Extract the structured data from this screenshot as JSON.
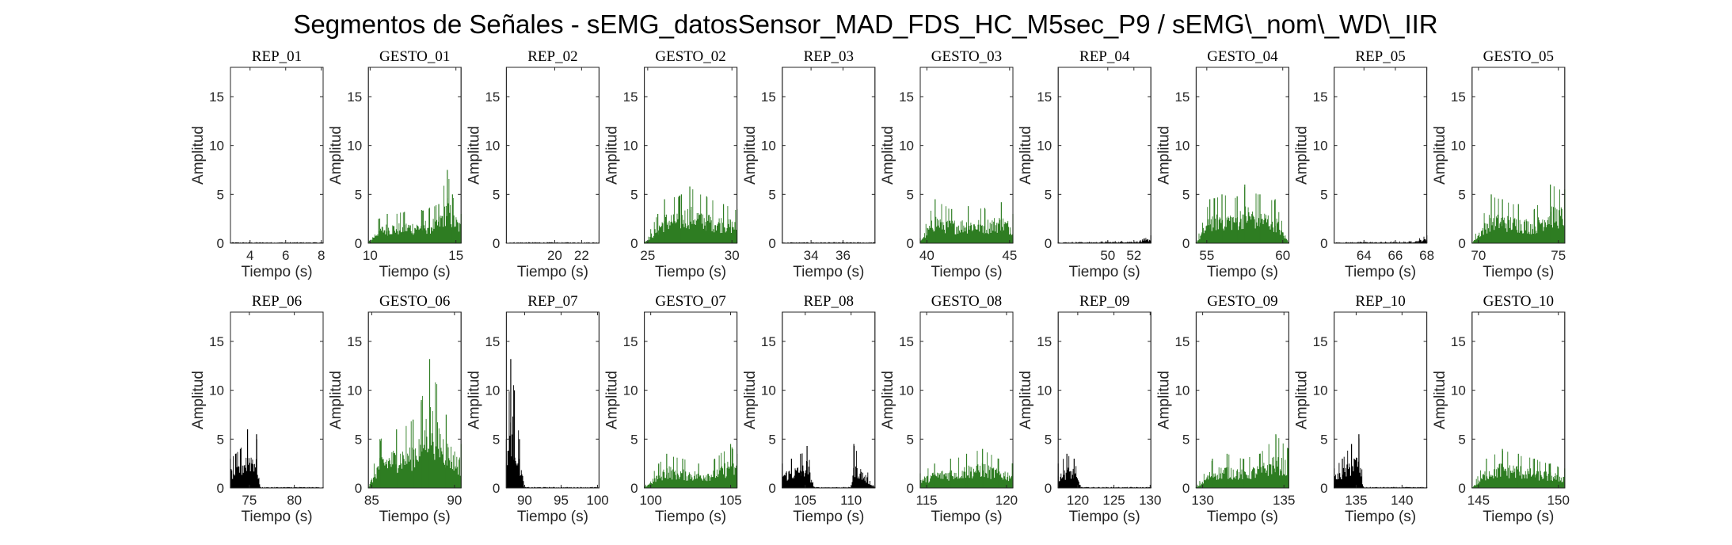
{
  "figure": {
    "title": "Segmentos de Señales - sEMG_datosSensor_MAD_FDS_HC_M5sec_P9 / sEMG\\_nom\\_WD\\_IIR"
  },
  "colors": {
    "rep": "#000000",
    "gesto": "#2e7d22",
    "axes": "#262626"
  },
  "chart_data": [
    {
      "type": "bar",
      "title": "REP_01",
      "kind": "rep",
      "xlabel": "Tiempo (s)",
      "ylabel": "Amplitud",
      "xlim": [
        2.9,
        8.1
      ],
      "ylim": [
        0,
        18
      ],
      "xticks": [
        4,
        6,
        8
      ],
      "yticks": [
        0,
        5,
        10,
        15
      ],
      "x": [
        2.9,
        8.1
      ],
      "values": [
        0.1,
        0.1
      ]
    },
    {
      "type": "bar",
      "title": "GESTO_01",
      "kind": "gesto",
      "xlabel": "Tiempo (s)",
      "ylabel": "Amplitud",
      "xlim": [
        9.9,
        15.3
      ],
      "ylim": [
        0,
        18
      ],
      "xticks": [
        10,
        15
      ],
      "yticks": [
        0,
        5,
        10,
        15
      ],
      "x": [
        9.9,
        10.5,
        11.0,
        12.0,
        13.0,
        14.0,
        14.5,
        14.8,
        15.3
      ],
      "values": [
        0.1,
        2.5,
        3.0,
        3.2,
        3.4,
        4.0,
        7.5,
        5.0,
        3.0
      ]
    },
    {
      "type": "bar",
      "title": "REP_02",
      "kind": "rep",
      "xlabel": "Tiempo (s)",
      "ylabel": "Amplitud",
      "xlim": [
        16.4,
        23.3
      ],
      "ylim": [
        0,
        18
      ],
      "xticks": [
        20,
        22
      ],
      "yticks": [
        0,
        5,
        10,
        15
      ],
      "x": [
        16.4,
        23.3
      ],
      "values": [
        0.1,
        0.1
      ]
    },
    {
      "type": "bar",
      "title": "GESTO_02",
      "kind": "gesto",
      "xlabel": "Tiempo (s)",
      "ylabel": "Amplitud",
      "xlim": [
        24.8,
        30.3
      ],
      "ylim": [
        0,
        18
      ],
      "xticks": [
        25,
        30
      ],
      "yticks": [
        0,
        5,
        10,
        15
      ],
      "x": [
        24.8,
        25.6,
        26.0,
        27.0,
        27.5,
        28.5,
        29.5,
        30.3
      ],
      "values": [
        0.1,
        3.0,
        4.5,
        5.0,
        5.8,
        4.8,
        4.0,
        3.5
      ]
    },
    {
      "type": "bar",
      "title": "REP_03",
      "kind": "rep",
      "xlabel": "Tiempo (s)",
      "ylabel": "Amplitud",
      "xlim": [
        32.2,
        38.0
      ],
      "ylim": [
        0,
        18
      ],
      "xticks": [
        34,
        36
      ],
      "yticks": [
        0,
        5,
        10,
        15
      ],
      "x": [
        32.2,
        38.0
      ],
      "values": [
        0.1,
        0.1
      ]
    },
    {
      "type": "bar",
      "title": "GESTO_03",
      "kind": "gesto",
      "xlabel": "Tiempo (s)",
      "ylabel": "Amplitud",
      "xlim": [
        39.6,
        45.2
      ],
      "ylim": [
        0,
        18
      ],
      "xticks": [
        40,
        45
      ],
      "yticks": [
        0,
        5,
        10,
        15
      ],
      "x": [
        39.6,
        40.5,
        41.5,
        42.5,
        43.5,
        44.5,
        45.2
      ],
      "values": [
        0.5,
        4.5,
        3.5,
        3.8,
        3.6,
        4.2,
        3.0
      ]
    },
    {
      "type": "bar",
      "title": "REP_04",
      "kind": "rep",
      "xlabel": "Tiempo (s)",
      "ylabel": "Amplitud",
      "xlim": [
        46.2,
        53.3
      ],
      "ylim": [
        0,
        18
      ],
      "xticks": [
        50,
        52
      ],
      "yticks": [
        0,
        5,
        10,
        15
      ],
      "x": [
        46.2,
        50.0,
        52.5,
        53.3
      ],
      "values": [
        0.1,
        0.2,
        0.3,
        0.8
      ]
    },
    {
      "type": "bar",
      "title": "GESTO_04",
      "kind": "gesto",
      "xlabel": "Tiempo (s)",
      "ylabel": "Amplitud",
      "xlim": [
        54.3,
        60.4
      ],
      "ylim": [
        0,
        18
      ],
      "xticks": [
        55,
        60
      ],
      "yticks": [
        0,
        5,
        10,
        15
      ],
      "x": [
        54.3,
        55.2,
        56.0,
        57.0,
        57.5,
        58.5,
        59.5,
        60.4
      ],
      "values": [
        0.1,
        4.5,
        5.0,
        4.8,
        6.0,
        5.0,
        4.5,
        0.1
      ]
    },
    {
      "type": "bar",
      "title": "REP_05",
      "kind": "rep",
      "xlabel": "Tiempo (s)",
      "ylabel": "Amplitud",
      "xlim": [
        62.1,
        68.0
      ],
      "ylim": [
        0,
        18
      ],
      "xticks": [
        64,
        66,
        68
      ],
      "yticks": [
        0,
        5,
        10,
        15
      ],
      "x": [
        62.1,
        67.0,
        68.0
      ],
      "values": [
        0.1,
        0.2,
        0.8
      ]
    },
    {
      "type": "bar",
      "title": "GESTO_05",
      "kind": "gesto",
      "xlabel": "Tiempo (s)",
      "ylabel": "Amplitud",
      "xlim": [
        69.6,
        75.4
      ],
      "ylim": [
        0,
        18
      ],
      "xticks": [
        70,
        75
      ],
      "yticks": [
        0,
        5,
        10,
        15
      ],
      "x": [
        69.6,
        70.8,
        71.5,
        72.5,
        73.5,
        74.5,
        75.4
      ],
      "values": [
        0.1,
        5.0,
        4.5,
        4.0,
        3.5,
        6.0,
        5.5
      ]
    },
    {
      "type": "bar",
      "title": "REP_06",
      "kind": "rep",
      "xlabel": "Tiempo (s)",
      "ylabel": "Amplitud",
      "xlim": [
        72.9,
        83.2
      ],
      "ylim": [
        0,
        18
      ],
      "xticks": [
        75,
        80
      ],
      "yticks": [
        0,
        5,
        10,
        15
      ],
      "x": [
        72.9,
        74.0,
        74.8,
        75.8,
        76.2,
        83.2
      ],
      "values": [
        3.0,
        4.0,
        6.0,
        5.5,
        0.1,
        0.1
      ]
    },
    {
      "type": "bar",
      "title": "GESTO_06",
      "kind": "gesto",
      "xlabel": "Tiempo (s)",
      "ylabel": "Amplitud",
      "xlim": [
        84.8,
        90.4
      ],
      "ylim": [
        0,
        18
      ],
      "xticks": [
        85,
        90
      ],
      "yticks": [
        0,
        5,
        10,
        15
      ],
      "x": [
        84.8,
        85.5,
        86.5,
        87.5,
        88.0,
        88.5,
        89.5,
        90.4
      ],
      "values": [
        0.1,
        5.0,
        6.0,
        7.0,
        9.0,
        13.2,
        7.5,
        4.5
      ]
    },
    {
      "type": "bar",
      "title": "REP_07",
      "kind": "rep",
      "xlabel": "Tiempo (s)",
      "ylabel": "Amplitud",
      "xlim": [
        87.5,
        100.2
      ],
      "ylim": [
        0,
        18
      ],
      "xticks": [
        90,
        95,
        100
      ],
      "yticks": [
        0,
        5,
        10,
        15
      ],
      "x": [
        87.5,
        88.1,
        88.6,
        89.3,
        90.0,
        100.2
      ],
      "values": [
        5.0,
        13.2,
        10.0,
        5.0,
        0.1,
        0.1
      ]
    },
    {
      "type": "bar",
      "title": "GESTO_07",
      "kind": "gesto",
      "xlabel": "Tiempo (s)",
      "ylabel": "Amplitud",
      "xlim": [
        99.6,
        105.4
      ],
      "ylim": [
        0,
        18
      ],
      "xticks": [
        100,
        105
      ],
      "yticks": [
        0,
        5,
        10,
        15
      ],
      "x": [
        99.6,
        100.5,
        101.0,
        102.0,
        103.0,
        104.0,
        105.0,
        105.4
      ],
      "values": [
        0.1,
        2.5,
        3.5,
        3.0,
        2.5,
        3.0,
        4.5,
        3.5
      ]
    },
    {
      "type": "bar",
      "title": "REP_08",
      "kind": "rep",
      "xlabel": "Tiempo (s)",
      "ylabel": "Amplitud",
      "xlim": [
        102.5,
        112.6
      ],
      "ylim": [
        0,
        18
      ],
      "xticks": [
        105,
        110
      ],
      "yticks": [
        0,
        5,
        10,
        15
      ],
      "x": [
        102.5,
        103.5,
        104.5,
        105.2,
        106.0,
        110.0,
        110.3,
        112.6
      ],
      "values": [
        2.5,
        3.0,
        3.5,
        4.3,
        0.1,
        0.1,
        4.5,
        0.1
      ]
    },
    {
      "type": "bar",
      "title": "GESTO_08",
      "kind": "gesto",
      "xlabel": "Tiempo (s)",
      "ylabel": "Amplitud",
      "xlim": [
        114.6,
        120.4
      ],
      "ylim": [
        0,
        18
      ],
      "xticks": [
        115,
        120
      ],
      "yticks": [
        0,
        5,
        10,
        15
      ],
      "x": [
        114.6,
        115.5,
        116.5,
        117.5,
        118.5,
        119.5,
        120.4
      ],
      "values": [
        1.5,
        2.5,
        3.0,
        3.5,
        4.0,
        3.0,
        2.5
      ]
    },
    {
      "type": "bar",
      "title": "REP_09",
      "kind": "rep",
      "xlabel": "Tiempo (s)",
      "ylabel": "Amplitud",
      "xlim": [
        117.3,
        130.1
      ],
      "ylim": [
        0,
        18
      ],
      "xticks": [
        120,
        125,
        130
      ],
      "yticks": [
        0,
        5,
        10,
        15
      ],
      "x": [
        117.3,
        118.5,
        119.5,
        120.5,
        130.1
      ],
      "values": [
        2.5,
        3.5,
        3.0,
        0.1,
        0.1
      ]
    },
    {
      "type": "bar",
      "title": "GESTO_09",
      "kind": "gesto",
      "xlabel": "Tiempo (s)",
      "ylabel": "Amplitud",
      "xlim": [
        129.6,
        135.3
      ],
      "ylim": [
        0,
        18
      ],
      "xticks": [
        130,
        135
      ],
      "yticks": [
        0,
        5,
        10,
        15
      ],
      "x": [
        129.6,
        130.6,
        131.5,
        132.5,
        133.5,
        134.5,
        135.3
      ],
      "values": [
        0.1,
        3.0,
        3.5,
        3.0,
        3.5,
        5.5,
        4.0
      ]
    },
    {
      "type": "bar",
      "title": "REP_10",
      "kind": "rep",
      "xlabel": "Tiempo (s)",
      "ylabel": "Amplitud",
      "xlim": [
        132.6,
        142.7
      ],
      "ylim": [
        0,
        18
      ],
      "xticks": [
        135,
        140
      ],
      "yticks": [
        0,
        5,
        10,
        15
      ],
      "x": [
        132.6,
        133.5,
        134.5,
        135.3,
        135.8,
        142.7
      ],
      "values": [
        2.0,
        3.0,
        4.5,
        5.5,
        0.1,
        0.1
      ]
    },
    {
      "type": "bar",
      "title": "GESTO_10",
      "kind": "gesto",
      "xlabel": "Tiempo (s)",
      "ylabel": "Amplitud",
      "xlim": [
        144.6,
        150.4
      ],
      "ylim": [
        0,
        18
      ],
      "xticks": [
        145,
        150
      ],
      "yticks": [
        0,
        5,
        10,
        15
      ],
      "x": [
        144.6,
        145.5,
        146.5,
        147.5,
        148.5,
        149.5,
        150.4
      ],
      "values": [
        0.1,
        3.0,
        4.0,
        3.5,
        3.0,
        2.5,
        2.0
      ]
    }
  ]
}
